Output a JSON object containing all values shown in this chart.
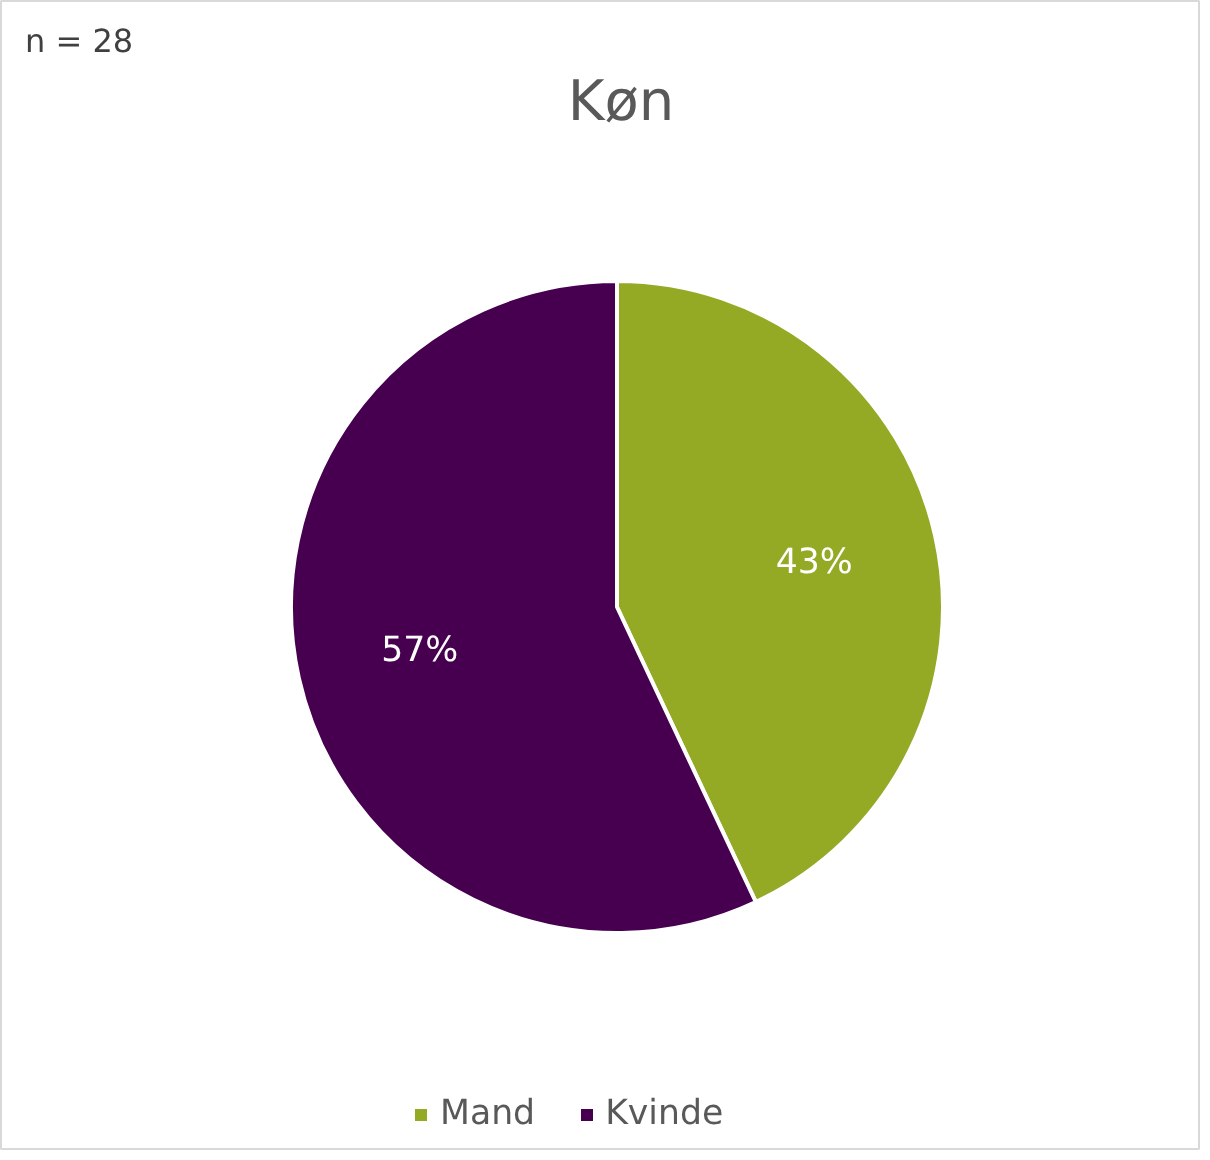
{
  "chart_data": {
    "type": "pie",
    "title": "Køn",
    "annotations": [
      "n = 28"
    ],
    "categories": [
      "Mand",
      "Kvinde"
    ],
    "values": [
      43,
      57
    ],
    "colors": [
      "#94a924",
      "#46004f"
    ],
    "value_labels": [
      "43%",
      "57%"
    ],
    "legend": "bottom"
  }
}
